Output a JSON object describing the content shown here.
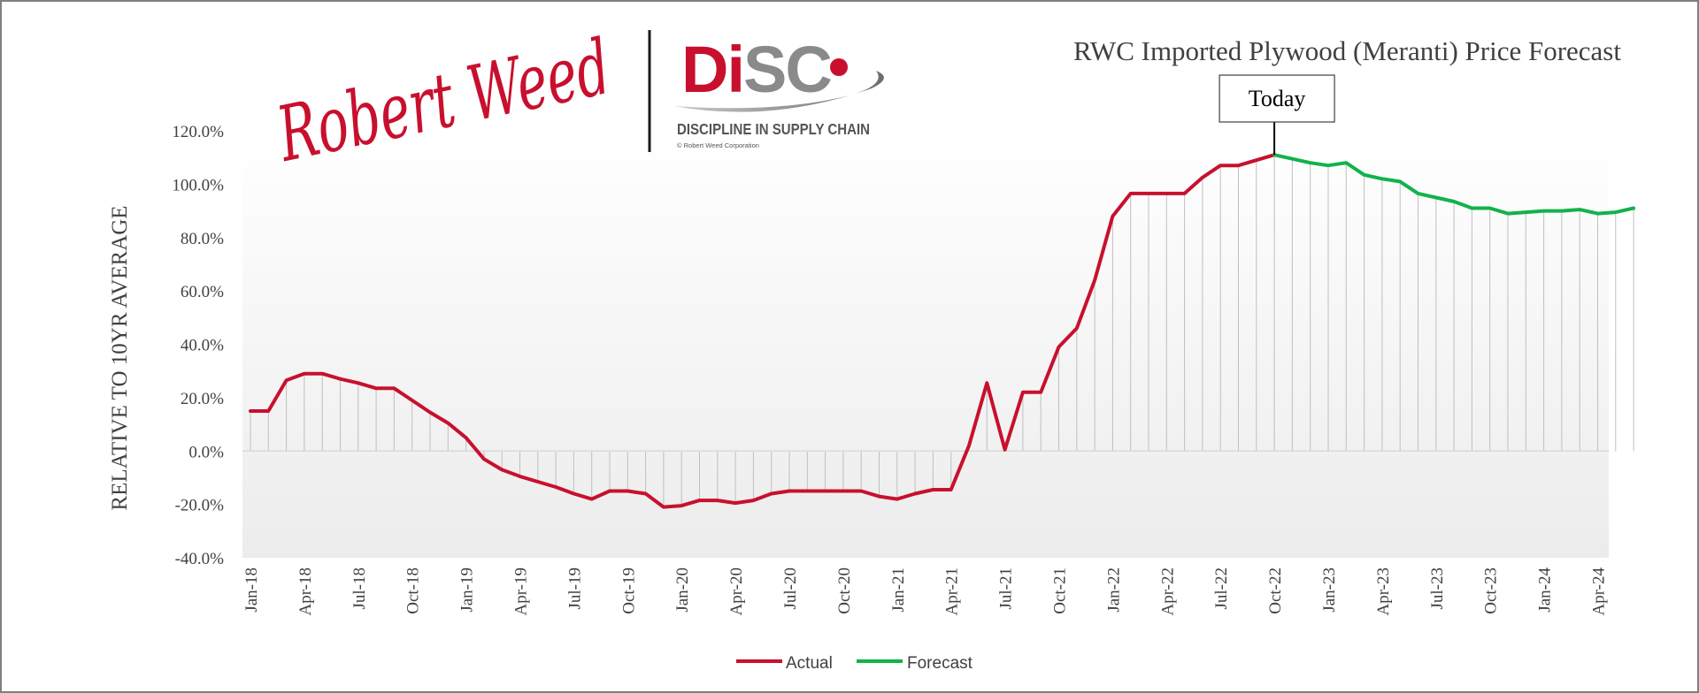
{
  "logo": {
    "script_text": "Robert Weed",
    "brand_text": "DiSC",
    "tagline": "DISCIPLINE IN SUPPLY CHAIN",
    "copyright": "© Robert Weed Corporation"
  },
  "colors": {
    "actual": "#c8102e",
    "forecast": "#12b24b",
    "brand_red": "#c8102e",
    "brand_gray": "#8a8a8a",
    "axis_text": "#404040",
    "drop_lines": "#bfbfbf"
  },
  "chart_data": {
    "type": "line",
    "title": "RWC Imported Plywood (Meranti) Price Forecast",
    "ylabel": "RELATIVE TO 10YR AVERAGE",
    "xlabel": "",
    "ylim": [
      -40,
      120
    ],
    "y_ticks": [
      "120.0%",
      "100.0%",
      "80.0%",
      "60.0%",
      "40.0%",
      "20.0%",
      "0.0%",
      "-20.0%",
      "-40.0%"
    ],
    "y_tick_values": [
      120,
      100,
      80,
      60,
      40,
      20,
      0,
      -20,
      -40
    ],
    "x_tick_labels": [
      "Jan-18",
      "Apr-18",
      "Jul-18",
      "Oct-18",
      "Jan-19",
      "Apr-19",
      "Jul-19",
      "Oct-19",
      "Jan-20",
      "Apr-20",
      "Jul-20",
      "Oct-20",
      "Jan-21",
      "Apr-21",
      "Jul-21",
      "Oct-21",
      "Jan-22",
      "Apr-22",
      "Jul-22",
      "Oct-22",
      "Jan-23",
      "Apr-23",
      "Jul-23",
      "Oct-23",
      "Jan-24",
      "Apr-24"
    ],
    "x_start": "Jan-18",
    "annotation": {
      "label": "Today",
      "at": "Oct-22"
    },
    "legend_position": "bottom",
    "drop_lines": true,
    "series": [
      {
        "name": "Actual",
        "color": "#c8102e",
        "values": [
          15,
          15,
          26.5,
          29,
          29,
          27,
          25.5,
          23.5,
          23.5,
          19,
          14.5,
          10.5,
          5,
          -3,
          -7,
          -9.5,
          -11.5,
          -13.5,
          -16,
          -18,
          -15,
          -15,
          -16,
          -21,
          -20.5,
          -18.5,
          -18.5,
          -19.5,
          -18.5,
          -16,
          -15,
          -15,
          -15,
          -15,
          -15,
          -17,
          -18,
          -16,
          -14.5,
          -14.5,
          2,
          25.5,
          0.5,
          22,
          22,
          39,
          46,
          64,
          88,
          96.5,
          96.5,
          96.5,
          96.5,
          102.5,
          107,
          107,
          109,
          111
        ]
      },
      {
        "name": "Forecast",
        "color": "#12b24b",
        "start_index": 57,
        "values": [
          111,
          109.5,
          108,
          107,
          108,
          103.5,
          102,
          101,
          96.5,
          95,
          93.5,
          91,
          91,
          89,
          89.5,
          90,
          90,
          90.5,
          89,
          89.5,
          91
        ]
      }
    ]
  }
}
